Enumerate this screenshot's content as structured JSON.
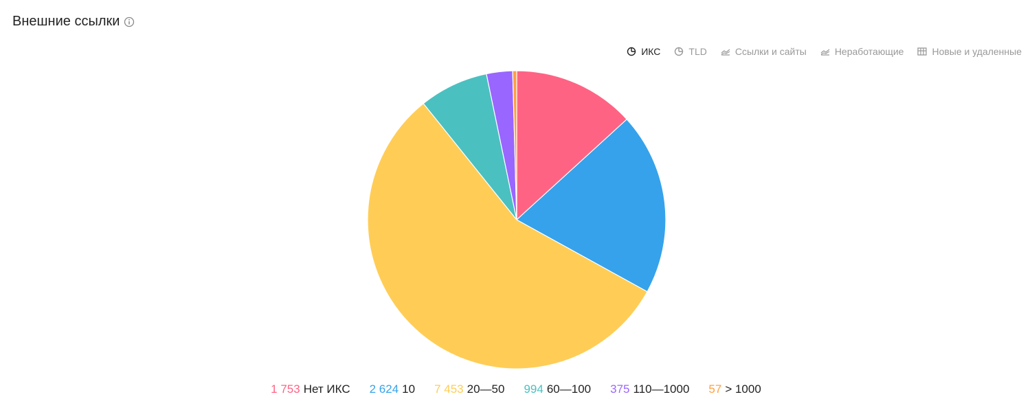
{
  "header": {
    "title": "Внешние ссылки"
  },
  "tabs": [
    {
      "label": "ИКС",
      "icon": "pie",
      "active": true
    },
    {
      "label": "TLD",
      "icon": "pie",
      "active": false
    },
    {
      "label": "Ссылки и сайты",
      "icon": "line",
      "active": false
    },
    {
      "label": "Неработающие",
      "icon": "line",
      "active": false
    },
    {
      "label": "Новые и удаленные",
      "icon": "table",
      "active": false
    }
  ],
  "chart_data": {
    "type": "pie",
    "categories": [
      "Нет ИКС",
      "10",
      "20—50",
      "60—100",
      "110—1000",
      "> 1000"
    ],
    "values": [
      1753,
      2624,
      7453,
      994,
      375,
      57
    ],
    "value_labels": [
      "1 753",
      "2 624",
      "7 453",
      "994",
      "375",
      "57"
    ],
    "colors": [
      "#ff6384",
      "#36a2eb",
      "#ffcd56",
      "#4bc0c0",
      "#9966ff",
      "#ff9f40"
    ]
  }
}
